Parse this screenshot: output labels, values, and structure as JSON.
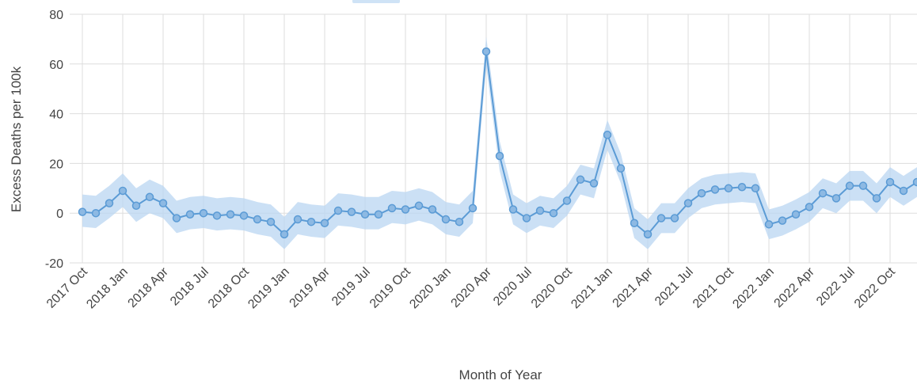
{
  "chart_data": {
    "type": "line",
    "xlabel": "Month of Year",
    "ylabel": "Excess Deaths per 100k",
    "ylim": [
      -20,
      80
    ],
    "yticks": [
      -20,
      0,
      20,
      40,
      60,
      80
    ],
    "xtick_labels": [
      "2017 Oct",
      "2018 Jan",
      "2018 Apr",
      "2018 Jul",
      "2018 Oct",
      "2019 Jan",
      "2019 Apr",
      "2019 Jul",
      "2019 Oct",
      "2020 Jan",
      "2020 Apr",
      "2020 Jul",
      "2020 Oct",
      "2021 Jan",
      "2021 Apr",
      "2021 Jul",
      "2021 Oct",
      "2022 Jan",
      "2022 Apr",
      "2022 Jul",
      "2022 Oct"
    ],
    "grid": true,
    "colors": {
      "line": "#5b9bd5",
      "band": "#b9d6f2",
      "grid": "#dddddd"
    },
    "series": [
      {
        "x": [
          "2017 Oct",
          "2017 Nov",
          "2017 Dec",
          "2018 Jan",
          "2018 Feb",
          "2018 Mar",
          "2018 Apr",
          "2018 May",
          "2018 Jun",
          "2018 Jul",
          "2018 Aug",
          "2018 Sep",
          "2018 Oct",
          "2018 Nov",
          "2018 Dec",
          "2019 Jan",
          "2019 Feb",
          "2019 Mar",
          "2019 Apr",
          "2019 May",
          "2019 Jun",
          "2019 Jul",
          "2019 Aug",
          "2019 Sep",
          "2019 Oct",
          "2019 Nov",
          "2019 Dec",
          "2020 Jan",
          "2020 Feb",
          "2020 Mar",
          "2020 Apr",
          "2020 May",
          "2020 Jun",
          "2020 Jul",
          "2020 Aug",
          "2020 Sep",
          "2020 Oct",
          "2020 Nov",
          "2020 Dec",
          "2021 Jan",
          "2021 Feb",
          "2021 Mar",
          "2021 Apr",
          "2021 May",
          "2021 Jun",
          "2021 Jul",
          "2021 Aug",
          "2021 Sep",
          "2021 Oct",
          "2021 Nov",
          "2021 Dec",
          "2022 Jan",
          "2022 Feb",
          "2022 Mar",
          "2022 Apr",
          "2022 May",
          "2022 Jun",
          "2022 Jul",
          "2022 Aug",
          "2022 Sep",
          "2022 Oct",
          "2022 Nov",
          "2022 Dec"
        ],
        "values": [
          0.5,
          0,
          4,
          9,
          3,
          6.5,
          4,
          -2,
          -0.5,
          0,
          -1,
          -0.5,
          -1,
          -2.5,
          -3.5,
          -8.5,
          -2.5,
          -3.5,
          -4,
          1,
          0.5,
          -0.5,
          -0.5,
          2,
          1.5,
          3,
          1.5,
          -2.5,
          -3.5,
          2,
          65,
          23,
          1.5,
          -2,
          1,
          0,
          5,
          13.5,
          12,
          31.5,
          18,
          -4,
          -8.5,
          -2,
          -2,
          4,
          8,
          9.5,
          10,
          10.5,
          10,
          -4.5,
          -3,
          -0.5,
          2.5,
          8,
          6,
          11,
          11,
          6,
          12.5,
          9,
          12.5
        ],
        "lower": [
          -5.5,
          -6,
          -2,
          2.5,
          -3.5,
          0,
          -2,
          -8,
          -6.5,
          -6,
          -7,
          -6.5,
          -7,
          -8.5,
          -9.5,
          -14.5,
          -8.5,
          -9.5,
          -10,
          -5,
          -5.5,
          -6.5,
          -6.5,
          -4,
          -4.5,
          -3,
          -4.5,
          -8.5,
          -9.5,
          -4,
          59,
          17,
          -4.5,
          -8,
          -5,
          -6,
          -1,
          7.5,
          6,
          25.5,
          12,
          -10,
          -14.5,
          -8,
          -8,
          -2,
          2,
          3.5,
          4,
          4.5,
          4,
          -10.5,
          -9,
          -6.5,
          -3.5,
          2,
          0,
          5,
          5,
          0,
          6.5,
          3,
          6.5
        ],
        "upper": [
          7.5,
          7,
          11,
          16,
          10,
          13.5,
          11,
          5,
          6.5,
          7,
          6,
          6.5,
          6,
          4.5,
          3.5,
          -1.5,
          4.5,
          3.5,
          3,
          8,
          7.5,
          6.5,
          6.5,
          9,
          8.5,
          10,
          8.5,
          4.5,
          3.5,
          9,
          71,
          29,
          7.5,
          4,
          7,
          6,
          11,
          19.5,
          18,
          37.5,
          24,
          2,
          -2.5,
          4,
          4,
          10,
          14,
          15.5,
          16,
          16.5,
          16,
          1.5,
          3,
          5.5,
          8.5,
          14,
          12,
          17,
          17,
          12,
          18.5,
          15,
          18.5
        ]
      }
    ]
  }
}
